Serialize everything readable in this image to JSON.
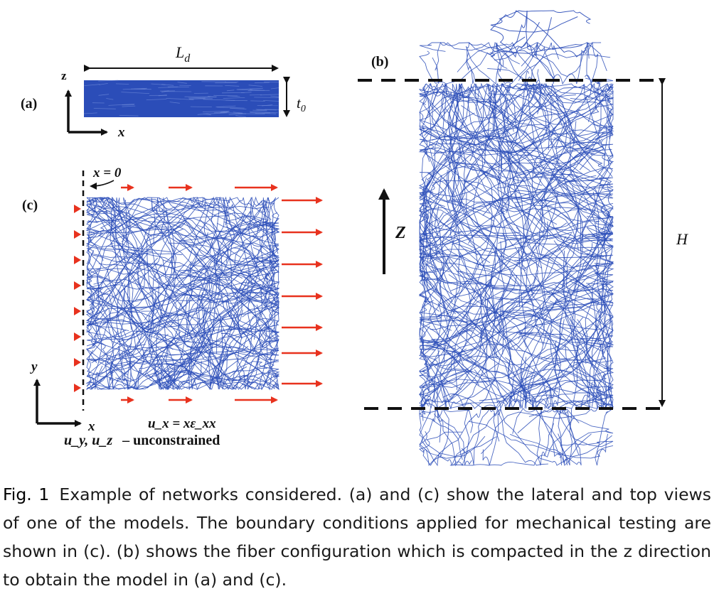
{
  "panels": {
    "a": {
      "label": "(a)",
      "axis_z": "z",
      "axis_x": "x",
      "length_label_main": "L",
      "length_label_sub": "d",
      "thickness_label_main": "t",
      "thickness_label_sub": "0"
    },
    "b": {
      "label": "(b)",
      "direction_label": "Z",
      "height_label": "H"
    },
    "c": {
      "label": "(c)",
      "origin_label": "x = 0",
      "axis_y": "y",
      "axis_x": "x",
      "bc_line1": "u_x = xε_xx",
      "bc_line2_vars": "u_y, u_z",
      "bc_line2_text": "– unconstrained"
    }
  },
  "caption": {
    "label": "Fig. 1",
    "text": "Example of networks considered. (a) and (c) show the lateral and top views of one of the models. The boundary conditions applied for mechanical testing are shown in (c). (b) shows the fiber configuration which is compacted in the z direction to obtain the model in (a) and (c)."
  },
  "colors": {
    "fiber": "#2b4db8",
    "arrow_red": "#e8321e",
    "ink": "#111111"
  }
}
